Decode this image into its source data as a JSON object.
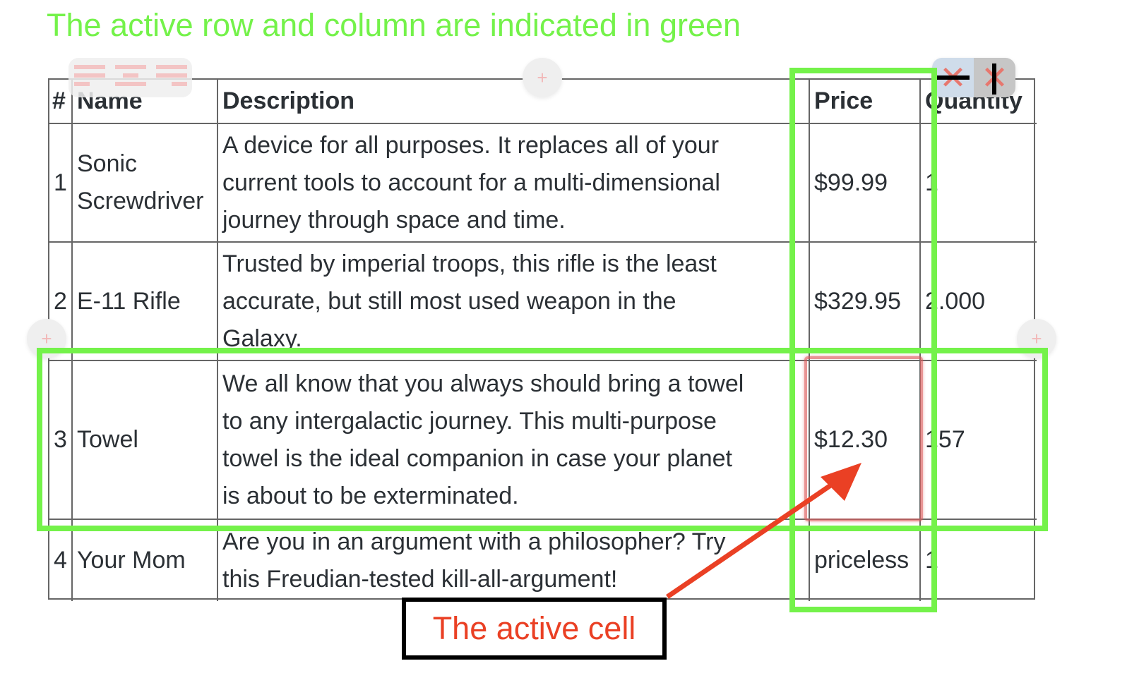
{
  "annotation_title": "The active row and column are indicated in green",
  "active_cell_label": "The active cell",
  "colors": {
    "highlight": "#74f24a",
    "active_cell": "#dc5a5a",
    "callout": "#ea4024"
  },
  "toolbar": {
    "align_icons": [
      "align-left-icon",
      "align-center-icon",
      "align-right-icon"
    ],
    "delete_row_icon": "delete-row-icon",
    "delete_column_icon": "delete-column-icon",
    "add_icon": "+"
  },
  "table": {
    "headers": [
      "#",
      "Name",
      "Description",
      "Price",
      "Quantity"
    ],
    "rows": [
      {
        "num": "1",
        "name": [
          "Sonic",
          "Screwdriver"
        ],
        "description": [
          "A device for all purposes. It replaces all of your",
          "current tools to account for a multi-dimensional",
          "journey through space and time."
        ],
        "price": "$99.99",
        "quantity": "1"
      },
      {
        "num": "2",
        "name": [
          "E-11 Rifle"
        ],
        "description": [
          "Trusted by imperial troops, this rifle is the least",
          "accurate, but still most used weapon in the",
          "Galaxy."
        ],
        "price": "$329.95",
        "quantity": "2.000"
      },
      {
        "num": "3",
        "name": [
          "Towel"
        ],
        "description": [
          "We all know that you always should bring a towel",
          "to any intergalactic journey. This multi-purpose",
          "towel is the ideal companion in case your planet",
          "is about to be exterminated."
        ],
        "price": "$12.30",
        "quantity": "157"
      },
      {
        "num": "4",
        "name": [
          "Your Mom"
        ],
        "description": [
          "Are you in an argument with a philosopher? Try",
          "this Freudian-tested kill-all-argument!"
        ],
        "price": "priceless",
        "quantity": "1"
      }
    ]
  }
}
